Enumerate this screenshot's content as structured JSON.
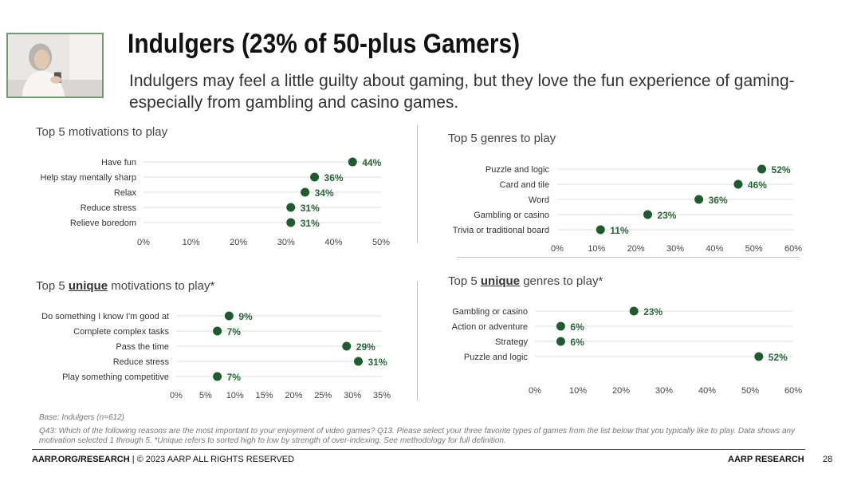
{
  "header": {
    "title": "Indulgers (23% of 50-plus Gamers)",
    "subtitle": "Indulgers may feel a little guilty about gaming, but they love the fun experience of gaming-especially from gambling and casino games."
  },
  "colors": {
    "dot": "#1e5c2e",
    "label_text": "#2a6637",
    "frame": "#6f9b76"
  },
  "panels": {
    "motivations": {
      "title": "Top 5 motivations to play"
    },
    "genres": {
      "title": "Top 5 genres to play"
    },
    "unique_motivations": {
      "title_prefix": "Top 5 ",
      "title_emph": "unique",
      "title_suffix": " motivations to play*"
    },
    "unique_genres": {
      "title_prefix": "Top 5 ",
      "title_emph": "unique",
      "title_suffix": " genres to play*"
    }
  },
  "chart_data": [
    {
      "id": "motivations",
      "type": "scatter",
      "categories": [
        "Have fun",
        "Help stay mentally sharp",
        "Relax",
        "Reduce stress",
        "Relieve boredom"
      ],
      "values": [
        44,
        36,
        34,
        31,
        31
      ],
      "value_labels": [
        "44%",
        "36%",
        "34%",
        "31%",
        "31%"
      ],
      "xlim": [
        0,
        50
      ],
      "xticks": [
        "0%",
        "10%",
        "20%",
        "30%",
        "40%",
        "50%"
      ]
    },
    {
      "id": "genres",
      "type": "scatter",
      "categories": [
        "Puzzle and logic",
        "Card and tile",
        "Word",
        "Gambling or casino",
        "Trivia or traditional board"
      ],
      "values": [
        52,
        46,
        36,
        23,
        11
      ],
      "value_labels": [
        "52%",
        "46%",
        "36%",
        "23%",
        "11%"
      ],
      "xlim": [
        0,
        60
      ],
      "xticks": [
        "0%",
        "10%",
        "20%",
        "30%",
        "40%",
        "50%",
        "60%"
      ]
    },
    {
      "id": "unique_motivations",
      "type": "scatter",
      "categories": [
        "Do something I know I'm good at",
        "Complete complex tasks",
        "Pass the time",
        "Reduce stress",
        "Play something competitive"
      ],
      "values": [
        9,
        7,
        29,
        31,
        7
      ],
      "value_labels": [
        "9%",
        "7%",
        "29%",
        "31%",
        "7%"
      ],
      "xlim": [
        0,
        35
      ],
      "xticks": [
        "0%",
        "5%",
        "10%",
        "15%",
        "20%",
        "25%",
        "30%",
        "35%"
      ]
    },
    {
      "id": "unique_genres",
      "type": "scatter",
      "categories": [
        "Gambling or casino",
        "Action or adventure",
        "Strategy",
        "Puzzle and logic"
      ],
      "values": [
        23,
        6,
        6,
        52
      ],
      "value_labels": [
        "23%",
        "6%",
        "6%",
        "52%"
      ],
      "xlim": [
        0,
        60
      ],
      "xticks": [
        "0%",
        "10%",
        "20%",
        "30%",
        "40%",
        "50%",
        "60%"
      ]
    }
  ],
  "notes": {
    "base": "Base: Indulgers (n=612)",
    "questions": "Q43: Which of the following reasons are the most important to your enjoyment of video games?  Q13. Please select your three favorite types of games from the list below that you typically like to play. Data shows any motivation selected 1 through 5. *Unique refers to sorted high to low by strength of over-indexing. See methodology for full definition."
  },
  "footer": {
    "left_bold": "AARP.ORG/RESEARCH",
    "left_rest": " | © 2023 AARP ALL RIGHTS RESERVED",
    "right": "AARP RESEARCH",
    "page": "28"
  }
}
